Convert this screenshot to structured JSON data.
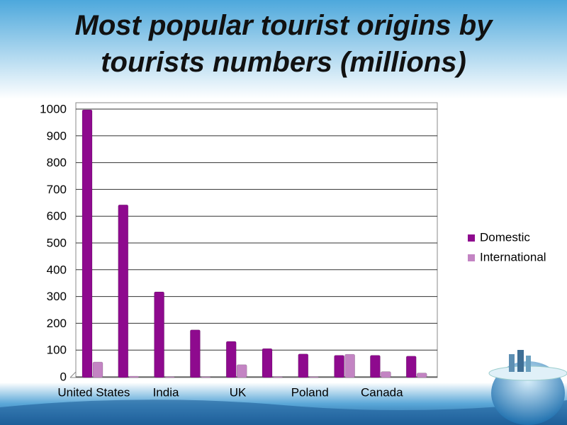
{
  "chart_data": {
    "type": "bar",
    "title": "Most popular tourist origins by tourists numbers (millions)",
    "categories": [
      "United States",
      null,
      "India",
      null,
      "UK",
      null,
      "Poland",
      null,
      "Canada",
      null
    ],
    "series": [
      {
        "name": "Domestic",
        "color": "#8e0a8e",
        "values": [
          1000,
          645,
          320,
          178,
          135,
          108,
          88,
          83,
          83,
          80
        ]
      },
      {
        "name": "International",
        "color": "#c384c3",
        "values": [
          58,
          5,
          3,
          3,
          48,
          3,
          3,
          87,
          22,
          17
        ]
      }
    ],
    "ylim": [
      0,
      1000
    ],
    "yticks": [
      0,
      100,
      200,
      300,
      400,
      500,
      600,
      700,
      800,
      900,
      1000
    ],
    "grid": true,
    "legend": "right"
  }
}
